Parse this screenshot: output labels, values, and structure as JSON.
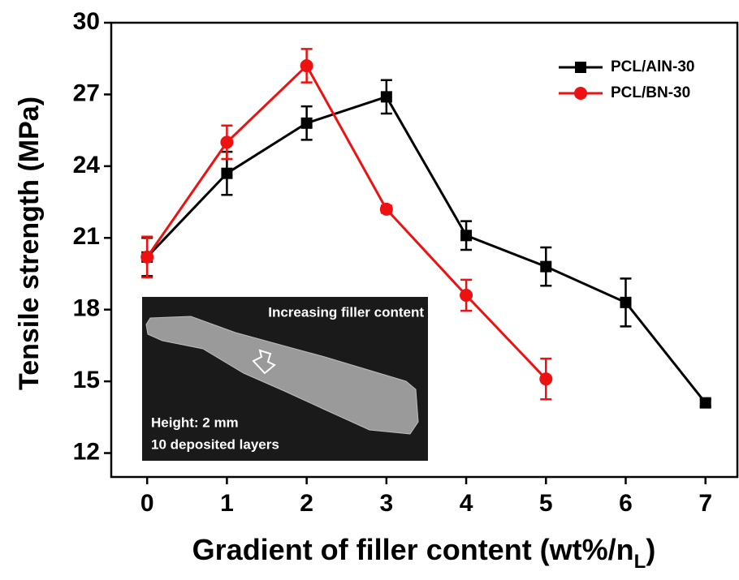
{
  "chart_data": {
    "type": "line",
    "y_label": "Tensile strength (MPa)",
    "x_label": [
      "Gradient of filler content (wt%/n",
      "L",
      ")"
    ],
    "xlim": [
      -0.45,
      7.4
    ],
    "ylim": [
      11,
      30
    ],
    "xticks": [
      0,
      1,
      2,
      3,
      4,
      5,
      6,
      7
    ],
    "yticks": [
      12,
      15,
      18,
      21,
      24,
      27,
      30
    ],
    "legend": "upper right",
    "series": [
      {
        "name": "PCL/AlN-30",
        "color": "#000000",
        "marker": "square",
        "x": [
          0,
          1,
          2,
          3,
          4,
          5,
          6,
          7
        ],
        "values": [
          20.2,
          23.7,
          25.8,
          26.9,
          21.1,
          19.8,
          18.3,
          14.1
        ],
        "errors": [
          0.8,
          0.9,
          0.7,
          0.7,
          0.6,
          0.8,
          1.0,
          0.15
        ]
      },
      {
        "name": "PCL/BN-30",
        "color": "#ee1111",
        "marker": "circle",
        "x": [
          0,
          1,
          2,
          3,
          4,
          5
        ],
        "values": [
          20.2,
          25.0,
          28.2,
          22.2,
          18.6,
          15.1
        ],
        "errors": [
          0.85,
          0.7,
          0.7,
          0.15,
          0.65,
          0.85
        ]
      }
    ],
    "inset": {
      "title": "Increasing filler content",
      "lines": [
        "Height: 2 mm",
        "10 deposited layers"
      ]
    }
  }
}
